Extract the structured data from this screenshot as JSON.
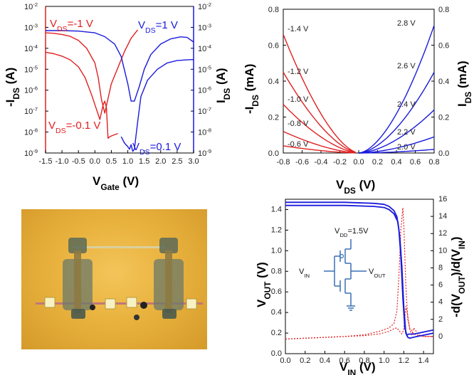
{
  "chart_data": [
    {
      "type": "line",
      "yscale": "log",
      "xlim": [
        -1.5,
        3.0
      ],
      "ylim_left": [
        1e-09,
        0.01
      ],
      "ylim_right": [
        1e-09,
        0.01
      ],
      "xlabel": "V",
      "xlabel_sub": "Gate",
      "xlabel_unit": " (V)",
      "ylabel_left": "-I",
      "ylabel_left_sub": "DS",
      "ylabel_left_unit": " (A)",
      "ylabel_right": "I",
      "ylabel_right_sub": "DS",
      "ylabel_right_unit": " (A)",
      "xticks": [
        "-1.5",
        "-1.0",
        "-0.5",
        "0.0",
        "0.5",
        "1.0",
        "1.5",
        "2.0",
        "2.5",
        "3.0"
      ],
      "xtick_values": [
        -1.5,
        -1.0,
        -0.5,
        0.0,
        0.5,
        1.0,
        1.5,
        2.0,
        2.5,
        3.0
      ],
      "yticks": [
        "10-2",
        "10-3",
        "10-4",
        "10-5",
        "10-6",
        "10-7",
        "10-8",
        "10-9"
      ],
      "yticks_display": [
        {
          "base": "10",
          "exp": "-2"
        },
        {
          "base": "10",
          "exp": "-3"
        },
        {
          "base": "10",
          "exp": "-4"
        },
        {
          "base": "10",
          "exp": "-5"
        },
        {
          "base": "10",
          "exp": "-6"
        },
        {
          "base": "10",
          "exp": "-7"
        },
        {
          "base": "10",
          "exp": "-8"
        },
        {
          "base": "10",
          "exp": "-9"
        }
      ],
      "annotations": [
        {
          "pre": "V",
          "sub": "DS",
          "post": "=-1 V",
          "color": "#e02020"
        },
        {
          "pre": "V",
          "sub": "DS",
          "post": "=1 V",
          "color": "#1a1adc"
        },
        {
          "pre": "V",
          "sub": "DS",
          "post": "=-0.1 V",
          "color": "#e02020"
        },
        {
          "pre": "V",
          "sub": "DS",
          "post": "=0.1 V",
          "color": "#1a1adc"
        }
      ],
      "series": [
        {
          "color": "#e02020",
          "x": [
            -1.5,
            -1.25,
            -1.0,
            -0.75,
            -0.5,
            -0.25,
            0.0,
            0.1,
            0.2,
            0.3,
            0.4,
            0.5,
            0.7,
            0.9,
            1.1,
            1.3
          ],
          "y": [
            0.00055,
            0.00052,
            0.00046,
            0.00037,
            0.00024,
            0.0001,
            2e-05,
            4e-06,
            3.5e-07,
            8e-08,
            4e-07,
            2e-06,
            1.2e-05,
            7e-05,
            0.0003,
            0.00075
          ]
        },
        {
          "color": "#e02020",
          "x": [
            -1.5,
            -1.25,
            -1.0,
            -0.75,
            -0.5,
            -0.3,
            -0.1,
            0.05,
            0.15,
            0.25,
            0.3,
            0.35,
            0.4,
            0.45,
            0.55,
            0.7
          ],
          "y": [
            6.5e-05,
            5.5e-05,
            4.2e-05,
            2.8e-05,
            1.3e-05,
            4e-06,
            6e-07,
            1.2e-07,
            4e-08,
            2e-07,
            3e-07,
            1.5e-07,
            5e-09,
            6e-09,
            7e-09,
            8.5e-09
          ]
        },
        {
          "color": "#1a1adc",
          "x": [
            -1.5,
            -1.0,
            -0.5,
            0.0,
            0.3,
            0.6,
            0.8,
            1.0,
            1.1,
            1.2,
            1.35,
            1.5,
            1.7,
            2.0,
            2.3,
            2.6,
            2.8,
            3.0
          ],
          "y": [
            0.0007,
            0.0007,
            0.00066,
            0.00055,
            0.00036,
            0.00016,
            4e-05,
            2e-06,
            3e-07,
            3e-07,
            1.5e-06,
            1e-05,
            5e-05,
            0.00016,
            0.00028,
            0.00035,
            0.00033,
            0.0002
          ]
        },
        {
          "color": "#1a1adc",
          "x": [
            0.8,
            0.9,
            1.0,
            1.05,
            1.1,
            1.15,
            1.2,
            1.3,
            1.4,
            1.6,
            1.9,
            2.2,
            2.5,
            2.8,
            3.0
          ],
          "y": [
            6e-09,
            3e-09,
            2e-09,
            1.5e-09,
            2.5e-09,
            1.2e-09,
            1.5e-09,
            3e-08,
            5e-07,
            3e-06,
            1e-05,
            2e-05,
            2.6e-05,
            2.8e-05,
            2.9e-05
          ]
        }
      ]
    },
    {
      "type": "line",
      "xlim": [
        -0.8,
        0.8
      ],
      "ylim": [
        0,
        0.8
      ],
      "xlabel": "V",
      "xlabel_sub": "DS",
      "xlabel_unit": " (V)",
      "ylabel_left": "-I",
      "ylabel_left_sub": "DS",
      "ylabel_left_unit": " (mA)",
      "ylabel_right": "I",
      "ylabel_right_sub": "DS",
      "ylabel_right_unit": " (mA)",
      "xticks": [
        "-0.8",
        "-0.6",
        "-0.4",
        "-0.2",
        "0.0",
        "0.2",
        "0.4",
        "0.6",
        "0.8"
      ],
      "xtick_values": [
        -0.8,
        -0.6,
        -0.4,
        -0.2,
        0.0,
        0.2,
        0.4,
        0.6,
        0.8
      ],
      "yticks": [
        "0.0",
        "0.2",
        "0.4",
        "0.6",
        "0.8"
      ],
      "ytick_values": [
        0.0,
        0.2,
        0.4,
        0.6,
        0.8
      ],
      "p_series": [
        {
          "name": "-1.4 V",
          "y_end": 0.66
        },
        {
          "name": "-1.2 V",
          "y_end": 0.45
        },
        {
          "name": "-1.0 V",
          "y_end": 0.27
        },
        {
          "name": "-0.8 V",
          "y_end": 0.12
        },
        {
          "name": "-0.6 V",
          "y_end": 0.04
        }
      ],
      "n_series": [
        {
          "name": "2.8 V",
          "y_end": 0.71
        },
        {
          "name": "2.6 V",
          "y_end": 0.45
        },
        {
          "name": "2.4 V",
          "y_end": 0.24
        },
        {
          "name": "2.2 V",
          "y_end": 0.09
        },
        {
          "name": "2.0 V",
          "y_end": 0.02
        }
      ],
      "p_color": "#e02020",
      "n_color": "#1a1adc"
    },
    {
      "type": "line",
      "xlim": [
        0.0,
        1.5
      ],
      "ylim_left": [
        0.0,
        1.5
      ],
      "ylim_right": [
        -2,
        16
      ],
      "xlabel": "V",
      "xlabel_sub": "IN",
      "xlabel_unit": " (V)",
      "ylabel_left": "V",
      "ylabel_left_sub": "OUT",
      "ylabel_left_unit": " (V)",
      "ylabel_right_parts": [
        "-d(V",
        "OUT",
        ")/d(V",
        "IN",
        ")"
      ],
      "xticks": [
        "0.0",
        "0.2",
        "0.4",
        "0.6",
        "0.8",
        "1.0",
        "1.2",
        "1.4"
      ],
      "xtick_values": [
        0.0,
        0.2,
        0.4,
        0.6,
        0.8,
        1.0,
        1.2,
        1.4
      ],
      "yticks_left": [
        "0.0",
        "0.2",
        "0.4",
        "0.6",
        "0.8",
        "1.0",
        "1.2",
        "1.4"
      ],
      "ytick_left_values": [
        0.0,
        0.2,
        0.4,
        0.6,
        0.8,
        1.0,
        1.2,
        1.4
      ],
      "yticks_right": [
        "0",
        "2",
        "4",
        "6",
        "8",
        "10",
        "12",
        "14",
        "16"
      ],
      "ytick_right_values": [
        0,
        2,
        4,
        6,
        8,
        10,
        12,
        14,
        16
      ],
      "vtc_series": [
        {
          "color": "#1a1adc",
          "x": [
            0.0,
            0.3,
            0.6,
            0.9,
            1.0,
            1.05,
            1.1,
            1.13,
            1.15,
            1.17,
            1.19,
            1.21,
            1.23,
            1.25,
            1.3,
            1.35,
            1.4,
            1.5
          ],
          "y": [
            1.47,
            1.47,
            1.47,
            1.46,
            1.45,
            1.43,
            1.39,
            1.33,
            1.2,
            0.95,
            0.55,
            0.25,
            0.18,
            0.19,
            0.19,
            0.2,
            0.21,
            0.23
          ]
        },
        {
          "color": "#1a1adc",
          "x": [
            0.0,
            0.3,
            0.6,
            0.9,
            1.0,
            1.05,
            1.1,
            1.14,
            1.16,
            1.18,
            1.2,
            1.22,
            1.24,
            1.26,
            1.3,
            1.35,
            1.4,
            1.5
          ],
          "y": [
            1.44,
            1.44,
            1.44,
            1.43,
            1.42,
            1.4,
            1.36,
            1.28,
            1.12,
            0.85,
            0.45,
            0.2,
            0.16,
            0.15,
            0.16,
            0.17,
            0.18,
            0.2
          ]
        }
      ],
      "gain_series": [
        {
          "color": "#e02020",
          "x": [
            0.0,
            0.2,
            0.4,
            0.6,
            0.8,
            0.95,
            1.05,
            1.1,
            1.13,
            1.15,
            1.17,
            1.19,
            1.2,
            1.22,
            1.24,
            1.26,
            1.3,
            1.35,
            1.4,
            1.5
          ],
          "y": [
            -0.3,
            -0.2,
            -0.1,
            0.0,
            0.2,
            0.6,
            1.0,
            1.5,
            3.0,
            7.0,
            12.5,
            15.0,
            13.0,
            6.0,
            2.0,
            1.0,
            0.3,
            0.1,
            0.0,
            0.0
          ]
        },
        {
          "color": "#e02020",
          "x": [
            0.0,
            0.2,
            0.4,
            0.6,
            0.8,
            0.95,
            1.05,
            1.1,
            1.13,
            1.15,
            1.18,
            1.2,
            1.22,
            1.24,
            1.26,
            1.28,
            1.3,
            1.35,
            1.4,
            1.5
          ],
          "y": [
            -0.3,
            -0.2,
            -0.1,
            0.0,
            0.1,
            0.3,
            0.6,
            0.9,
            1.0,
            0.7,
            0.3,
            0.8,
            3.5,
            2.5,
            0.8,
            0.2,
            1.0,
            0.2,
            0.0,
            0.0
          ]
        }
      ],
      "inset": {
        "vdd_pre": "V",
        "vdd_sub": "DD",
        "vdd_post": "=1.5V",
        "vin_pre": "V",
        "vin_sub": "IN",
        "vout_pre": "V",
        "vout_sub": "OUT",
        "color": "#3a6fb5"
      }
    }
  ]
}
